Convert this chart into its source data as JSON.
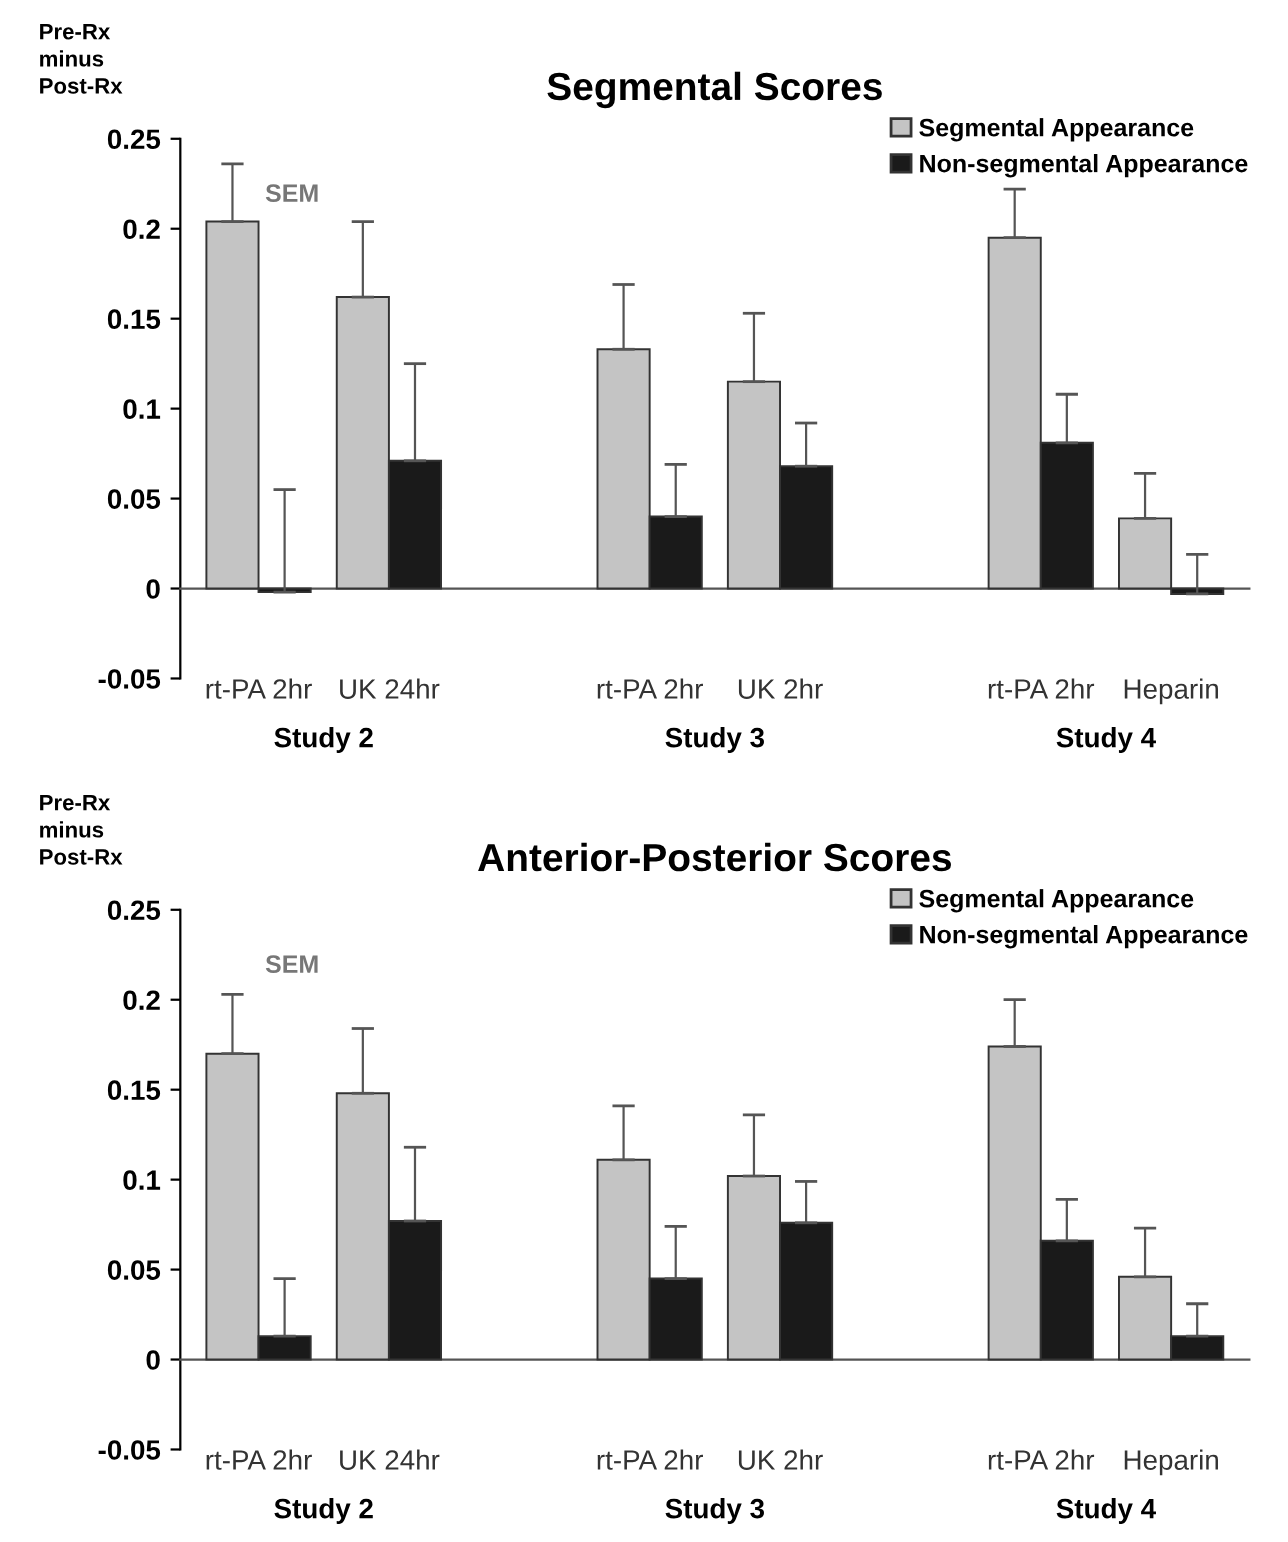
{
  "chart_data": [
    {
      "type": "bar",
      "title": "Segmental Scores",
      "ylabel": "Pre-Rx\nminus\nPost-Rx",
      "categories": [
        "rt-PA 2hr",
        "UK 24hr",
        null,
        "rt-PA 2hr",
        "UK 2hr",
        null,
        "rt-PA 2hr",
        "Heparin"
      ],
      "series": [
        {
          "name": "Segmental Appearance",
          "color": "#c4c4c4",
          "values": [
            0.204,
            0.162,
            null,
            0.133,
            0.115,
            null,
            0.195,
            0.039
          ],
          "errors": [
            [
              0.204,
              0.236
            ],
            [
              0.162,
              0.204
            ],
            null,
            [
              0.133,
              0.169
            ],
            [
              0.115,
              0.153
            ],
            null,
            [
              0.195,
              0.222
            ],
            [
              0.039,
              0.064
            ]
          ]
        },
        {
          "name": "Non-segmental Appearance",
          "color": "#1a1a1a",
          "values": [
            -0.002,
            0.071,
            null,
            0.04,
            0.068,
            null,
            0.081,
            -0.003
          ],
          "errors": [
            [
              -0.002,
              0.055
            ],
            [
              0.071,
              0.125
            ],
            null,
            [
              0.04,
              0.069
            ],
            [
              0.068,
              0.092
            ],
            null,
            [
              0.081,
              0.108
            ],
            [
              -0.003,
              0.019
            ]
          ]
        }
      ],
      "ylim": [
        -0.05,
        0.25
      ],
      "yticks": [
        -0.05,
        0,
        0.05,
        0.1,
        0.15,
        0.2,
        0.25
      ],
      "annotations": [
        "SEM",
        "Study 2",
        "Study 3",
        "Study 4"
      ],
      "legend": "top right"
    },
    {
      "type": "bar",
      "title": "Anterior-Posterior Scores",
      "ylabel": "Pre-Rx\nminus\nPost-Rx",
      "categories": [
        "rt-PA 2hr",
        "UK 24hr",
        null,
        "rt-PA 2hr",
        "UK 2hr",
        null,
        "rt-PA 2hr",
        "Heparin"
      ],
      "series": [
        {
          "name": "Segmental Appearance",
          "color": "#c4c4c4",
          "values": [
            0.17,
            0.148,
            null,
            0.111,
            0.102,
            null,
            0.174,
            0.046
          ],
          "errors": [
            [
              0.17,
              0.203
            ],
            [
              0.148,
              0.184
            ],
            null,
            [
              0.111,
              0.141
            ],
            [
              0.102,
              0.136
            ],
            null,
            [
              0.174,
              0.2
            ],
            [
              0.046,
              0.073
            ]
          ]
        },
        {
          "name": "Non-segmental Appearance",
          "color": "#1a1a1a",
          "values": [
            0.013,
            0.077,
            null,
            0.045,
            0.076,
            null,
            0.066,
            0.013
          ],
          "errors": [
            [
              0.013,
              0.045
            ],
            [
              0.077,
              0.118
            ],
            null,
            [
              0.045,
              0.074
            ],
            [
              0.076,
              0.099
            ],
            null,
            [
              0.066,
              0.089
            ],
            [
              0.013,
              0.031
            ]
          ]
        }
      ],
      "ylim": [
        -0.05,
        0.25
      ],
      "yticks": [
        -0.05,
        0,
        0.05,
        0.1,
        0.15,
        0.2,
        0.25
      ],
      "annotations": [
        "SEM",
        "Study 2",
        "Study 3",
        "Study 4"
      ],
      "legend": "top right"
    }
  ]
}
